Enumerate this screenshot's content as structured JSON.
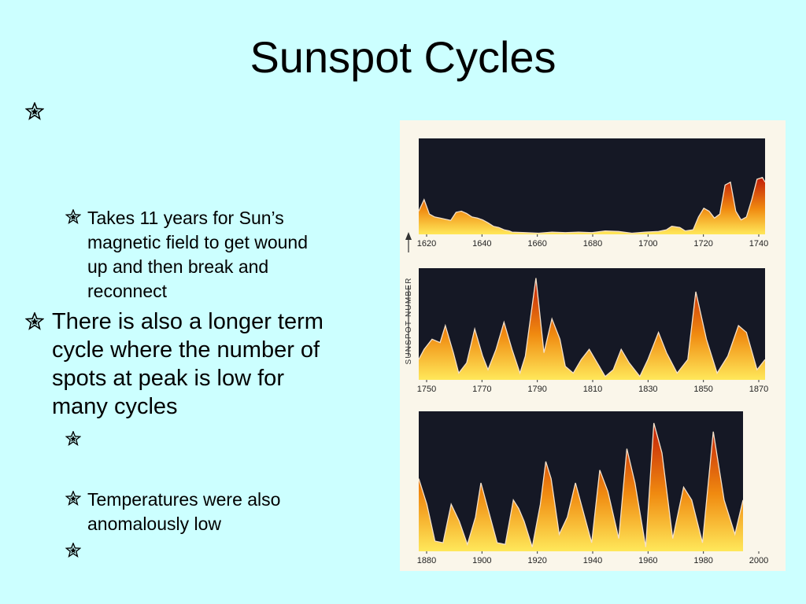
{
  "slide": {
    "title": "Sunspot Cycles",
    "background": "#ccffff"
  },
  "bullets": [
    {
      "level": 1,
      "lines": []
    },
    {
      "level": 2,
      "lines": [
        "Takes 11 years for Sun’s",
        "magnetic field to get wound",
        "up and then break and",
        "reconnect"
      ]
    },
    {
      "level": 1,
      "lines": [
        "There is also a longer term",
        "cycle where the number of",
        "spots at peak is low for",
        "many cycles"
      ]
    },
    {
      "level": 2,
      "lines": []
    },
    {
      "level": 2,
      "lines": [
        "Temperatures were also",
        "anomalously low"
      ]
    },
    {
      "level": 2,
      "lines": []
    }
  ],
  "figure": {
    "ylabel": "SUNSPOT NUMBER",
    "panel_color": "#151825",
    "fill_top_color": "#c21d08",
    "fill_mid_color": "#f08a10",
    "fill_bottom_color": "#ffe85a",
    "panels": [
      {
        "ticks": [
          "1620",
          "1640",
          "1660",
          "1680",
          "1700",
          "1720",
          "1740"
        ]
      },
      {
        "ticks": [
          "1750",
          "1770",
          "1790",
          "1810",
          "1830",
          "1850",
          "1870"
        ]
      },
      {
        "ticks": [
          "1880",
          "1900",
          "1920",
          "1940",
          "1960",
          "1980",
          "2000"
        ]
      }
    ]
  },
  "chart_data": {
    "type": "area",
    "ylabel": "SUNSPOT NUMBER",
    "series": [
      {
        "x": [
          1610,
          1612,
          1614,
          1616,
          1618,
          1620,
          1622,
          1624,
          1626,
          1628,
          1630,
          1632,
          1634,
          1636,
          1638,
          1640,
          1642,
          1644,
          1645,
          1650,
          1655,
          1660,
          1665,
          1670,
          1675,
          1680,
          1685,
          1690,
          1695,
          1700,
          1703,
          1705,
          1708,
          1710,
          1713,
          1715,
          1717,
          1719,
          1721,
          1723,
          1725,
          1727,
          1729,
          1731,
          1733,
          1735,
          1737,
          1739,
          1740
        ],
        "y": [
          40,
          60,
          35,
          30,
          28,
          26,
          24,
          38,
          40,
          36,
          30,
          28,
          25,
          20,
          14,
          12,
          8,
          6,
          4,
          3,
          2,
          4,
          3,
          4,
          3,
          6,
          5,
          2,
          4,
          5,
          8,
          14,
          12,
          6,
          8,
          30,
          45,
          40,
          28,
          35,
          85,
          90,
          40,
          25,
          30,
          60,
          95,
          98,
          90
        ]
      },
      {
        "x": [
          1740,
          1742,
          1745,
          1748,
          1750,
          1753,
          1755,
          1758,
          1761,
          1764,
          1766,
          1769,
          1772,
          1775,
          1778,
          1780,
          1784,
          1787,
          1790,
          1793,
          1795,
          1798,
          1801,
          1804,
          1807,
          1810,
          1813,
          1816,
          1819,
          1823,
          1826,
          1830,
          1833,
          1837,
          1841,
          1844,
          1848,
          1852,
          1856,
          1860,
          1863,
          1867,
          1870
        ],
        "y": [
          30,
          45,
          60,
          55,
          80,
          40,
          10,
          25,
          75,
          35,
          15,
          45,
          85,
          45,
          10,
          35,
          150,
          40,
          90,
          60,
          20,
          10,
          30,
          45,
          25,
          5,
          15,
          45,
          25,
          5,
          30,
          70,
          40,
          10,
          30,
          130,
          60,
          10,
          35,
          80,
          70,
          15,
          30
        ]
      },
      {
        "x": [
          1870,
          1873,
          1876,
          1879,
          1882,
          1885,
          1888,
          1891,
          1893,
          1896,
          1899,
          1902,
          1905,
          1907,
          1909,
          1912,
          1915,
          1917,
          1919,
          1922,
          1925,
          1928,
          1931,
          1934,
          1937,
          1940,
          1944,
          1947,
          1950,
          1954,
          1957,
          1960,
          1964,
          1968,
          1971,
          1975,
          1979,
          1983,
          1987,
          1990
        ],
        "y": [
          85,
          55,
          12,
          10,
          55,
          35,
          8,
          40,
          80,
          45,
          10,
          8,
          60,
          50,
          35,
          5,
          55,
          105,
          85,
          20,
          40,
          80,
          45,
          10,
          95,
          70,
          15,
          120,
          80,
          5,
          150,
          115,
          15,
          75,
          60,
          10,
          140,
          60,
          20,
          60
        ]
      }
    ],
    "categories": [
      [
        "1620",
        "1640",
        "1660",
        "1680",
        "1700",
        "1720",
        "1740"
      ],
      [
        "1750",
        "1770",
        "1790",
        "1810",
        "1830",
        "1850",
        "1870"
      ],
      [
        "1880",
        "1900",
        "1920",
        "1940",
        "1960",
        "1980",
        "2000"
      ]
    ]
  }
}
